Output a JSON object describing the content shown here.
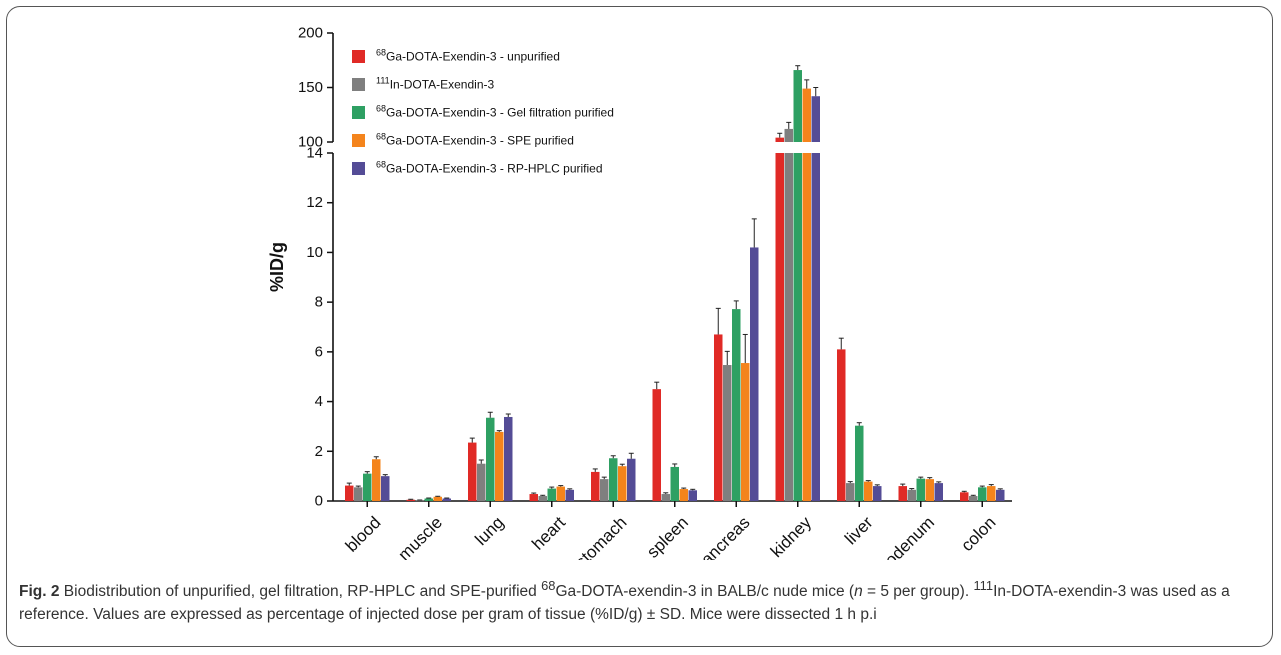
{
  "chart_data": {
    "type": "bar",
    "ylabel": "%ID/g",
    "xlabel": "",
    "broken_axis": {
      "lower": {
        "range": [
          0,
          14
        ],
        "ticks": [
          "0",
          "2",
          "4",
          "6",
          "8",
          "10",
          "12",
          "14"
        ]
      },
      "upper": {
        "range": [
          100,
          200
        ],
        "ticks": [
          "100",
          "150",
          "200"
        ]
      }
    },
    "categories": [
      "blood",
      "muscle",
      "lung",
      "heart",
      "stomach",
      "spleen",
      "pancreas",
      "kidney",
      "liver",
      "duodenum",
      "colon"
    ],
    "series": [
      {
        "name": "Ga-DOTA-Exendin-3 - unpurified",
        "sup": "68",
        "color": "#e02a26",
        "values": [
          0.62,
          0.05,
          2.35,
          0.28,
          1.17,
          4.5,
          6.7,
          104,
          6.1,
          0.6,
          0.35
        ],
        "errors": [
          0.1,
          0.02,
          0.18,
          0.04,
          0.12,
          0.28,
          1.05,
          4,
          0.45,
          0.08,
          0.04
        ]
      },
      {
        "name": "In-DOTA-Exendin-3",
        "sup": "111",
        "color": "#7f7f7f",
        "values": [
          0.55,
          0.03,
          1.5,
          0.2,
          0.88,
          0.28,
          5.47,
          112,
          0.72,
          0.45,
          0.2
        ],
        "errors": [
          0.05,
          0.01,
          0.15,
          0.03,
          0.08,
          0.05,
          0.55,
          6,
          0.06,
          0.05,
          0.03
        ]
      },
      {
        "name": "Ga-DOTA-Exendin-3 - Gel filtration purified",
        "sup": "68",
        "color": "#2ea063",
        "values": [
          1.1,
          0.1,
          3.35,
          0.5,
          1.72,
          1.37,
          7.72,
          166,
          3.03,
          0.9,
          0.55
        ],
        "errors": [
          0.08,
          0.02,
          0.22,
          0.06,
          0.1,
          0.12,
          0.33,
          4,
          0.12,
          0.06,
          0.05
        ]
      },
      {
        "name": "Ga-DOTA-Exendin-3 - SPE purified",
        "sup": "68",
        "color": "#f4841c",
        "values": [
          1.68,
          0.17,
          2.78,
          0.58,
          1.4,
          0.48,
          5.55,
          149,
          0.78,
          0.88,
          0.6
        ],
        "errors": [
          0.1,
          0.02,
          0.05,
          0.04,
          0.08,
          0.04,
          1.15,
          8,
          0.04,
          0.06,
          0.06
        ]
      },
      {
        "name": "Ga-DOTA-Exendin-3 - RP-HPLC purified",
        "sup": "68",
        "color": "#544c96",
        "values": [
          1.0,
          0.1,
          3.38,
          0.45,
          1.7,
          0.43,
          10.2,
          142,
          0.6,
          0.72,
          0.45
        ],
        "errors": [
          0.06,
          0.02,
          0.12,
          0.04,
          0.22,
          0.04,
          1.15,
          8,
          0.05,
          0.05,
          0.04
        ]
      }
    ],
    "legend_position": "top-left",
    "grid": false
  },
  "caption": {
    "label": "Fig. 2",
    "part1": " Biodistribution of unpurified, gel filtration, RP-HPLC and SPE-purified ",
    "sup1": "68",
    "part2": "Ga-DOTA-exendin-3 in BALB/c nude mice (",
    "n_italic": "n",
    "part3": " = 5 per group). ",
    "sup2": "111",
    "part4": "In-DOTA-exendin-3 was used as a reference. Values are expressed as percentage of injected dose per gram of tissue (%ID/g) ± SD. Mice were dissected 1 h p.i"
  }
}
